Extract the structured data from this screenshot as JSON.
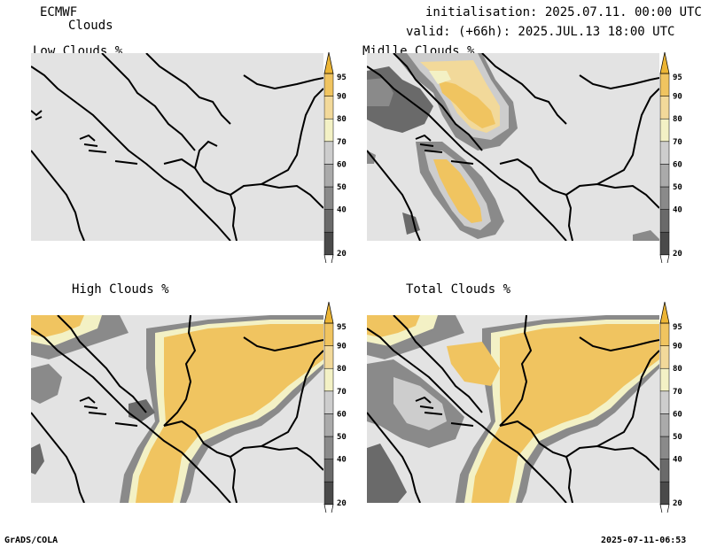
{
  "header": {
    "model": "ECMWF",
    "product": "Clouds",
    "initialisation": "initialisation: 2025.07.11. 00:00 UTC",
    "valid": "valid: (+66h): 2025.JUL.13 18:00 UTC"
  },
  "panels": [
    {
      "title": "Low Clouds %"
    },
    {
      "title": "Midlle Clouds %"
    },
    {
      "title": "High Clouds %"
    },
    {
      "title": "Total Clouds %"
    }
  ],
  "colorbar": {
    "levels": [
      20,
      30,
      40,
      50,
      60,
      70,
      80,
      90,
      95
    ],
    "labels": [
      "20",
      "40",
      "50",
      "60",
      "70",
      "80",
      "90",
      "95"
    ],
    "colors": {
      "c10": "#ffffff",
      "c20": "#4a4a4a",
      "c30": "#6a6a6a",
      "c40": "#8a8a8a",
      "c50": "#aaaaaa",
      "c60": "#cdcdcd",
      "c70": "#f3f1c5",
      "c80": "#f2d99a",
      "c90": "#f0c460",
      "c95": "#ecb535"
    }
  },
  "footer": {
    "left": "GrADS/COLA",
    "right": "2025-07-11-06:53"
  }
}
